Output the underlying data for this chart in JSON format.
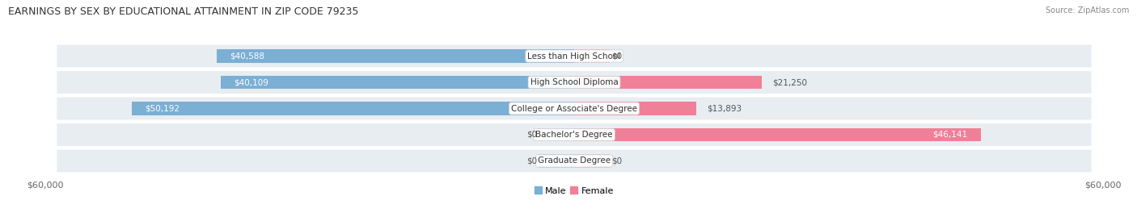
{
  "title": "EARNINGS BY SEX BY EDUCATIONAL ATTAINMENT IN ZIP CODE 79235",
  "source": "Source: ZipAtlas.com",
  "categories": [
    "Less than High School",
    "High School Diploma",
    "College or Associate's Degree",
    "Bachelor's Degree",
    "Graduate Degree"
  ],
  "male_values": [
    40588,
    40109,
    50192,
    0,
    0
  ],
  "female_values": [
    0,
    21250,
    13893,
    46141,
    0
  ],
  "male_labels": [
    "$40,588",
    "$40,109",
    "$50,192",
    "$0",
    "$0"
  ],
  "female_labels": [
    "$0",
    "$21,250",
    "$13,893",
    "$46,141",
    "$0"
  ],
  "max_value": 60000,
  "male_bar_color": "#7bafd4",
  "male_stub_color": "#b8d0e8",
  "female_bar_color": "#f08098",
  "female_stub_color": "#f5b8c8",
  "row_bg_color": "#e8edf2",
  "axis_label_left": "$60,000",
  "axis_label_right": "$60,000",
  "legend_male": "Male",
  "legend_female": "Female",
  "title_fontsize": 9,
  "label_fontsize": 7.5,
  "category_fontsize": 7.5,
  "source_fontsize": 7
}
